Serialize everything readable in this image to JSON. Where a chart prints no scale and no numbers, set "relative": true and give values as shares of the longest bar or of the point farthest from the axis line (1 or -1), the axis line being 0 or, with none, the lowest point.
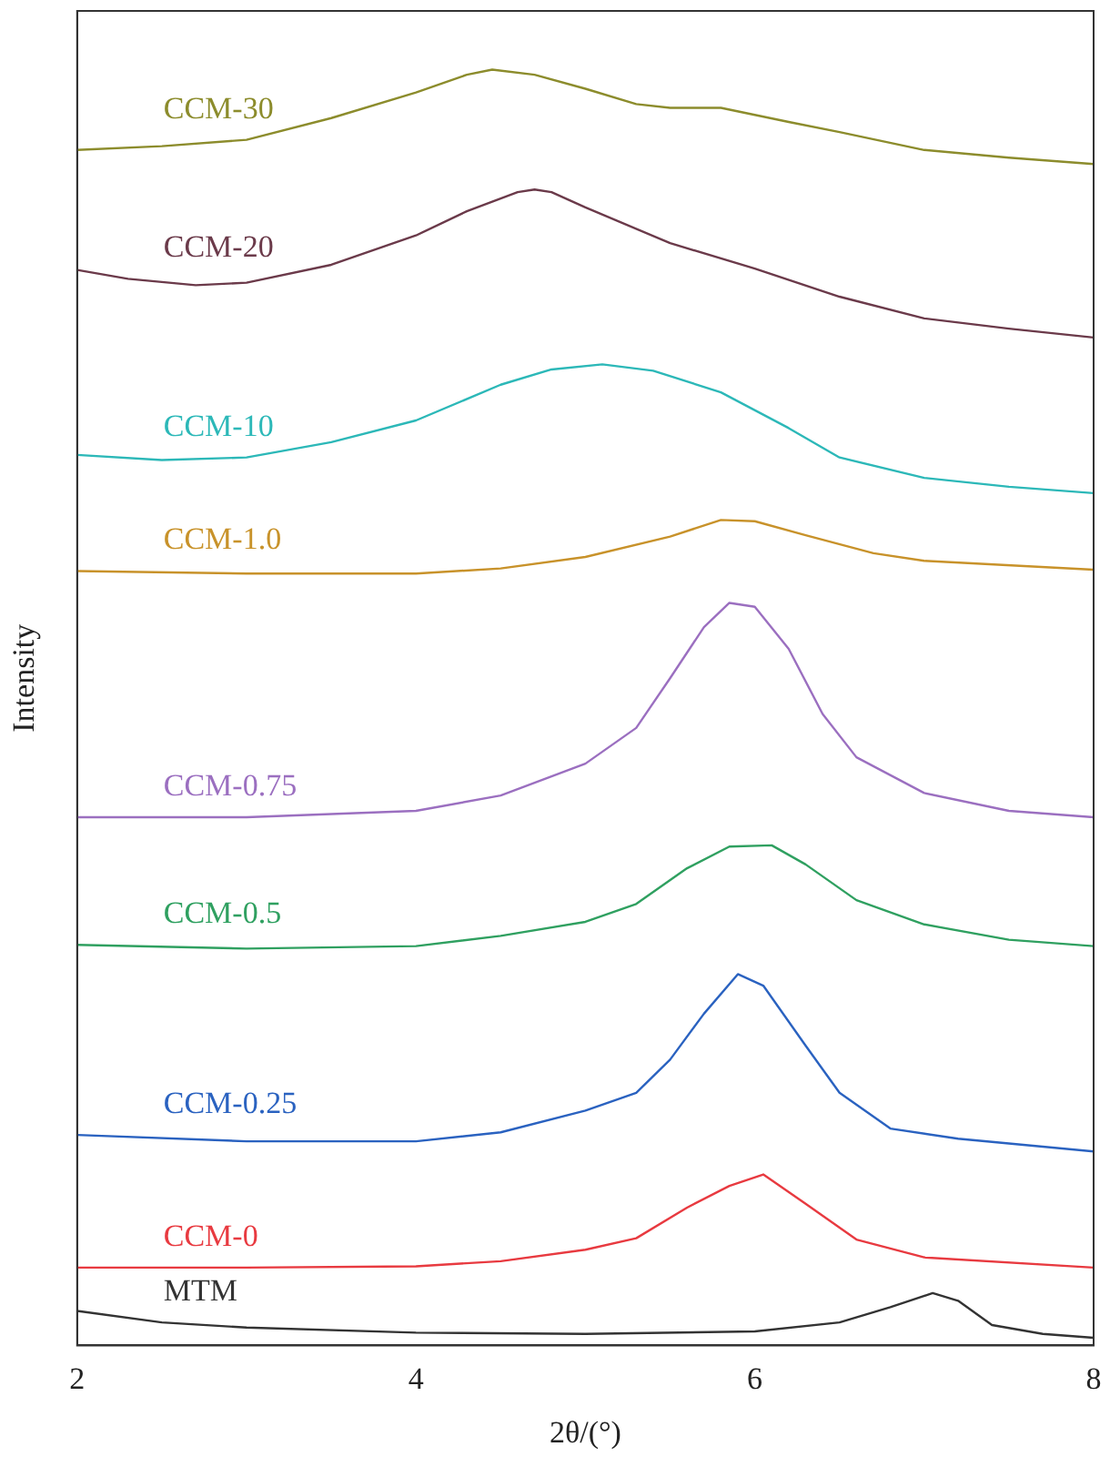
{
  "chart_data": {
    "type": "line",
    "relative": true,
    "xlabel": "2θ/(°)",
    "ylabel": "Intensity",
    "xlim": [
      2,
      8
    ],
    "xticks": [
      2,
      4,
      6,
      8
    ],
    "tick_labels": "x",
    "grid": false,
    "legend": false,
    "marker": "none",
    "line_style": "solid",
    "series": [
      {
        "name": "CCM-30",
        "color": "#8c8c2c",
        "x": [
          2,
          2.5,
          3,
          3.5,
          4,
          4.3,
          4.45,
          4.7,
          5,
          5.3,
          5.5,
          5.8,
          6.2,
          6.5,
          7,
          7.5,
          8
        ],
        "values": [
          0.937,
          0.94,
          0.945,
          0.962,
          0.982,
          0.996,
          1,
          0.996,
          0.985,
          0.973,
          0.97,
          0.97,
          0.959,
          0.951,
          0.937,
          0.931,
          0.926
        ]
      },
      {
        "name": "CCM-20",
        "color": "#6b3a4a",
        "x": [
          2,
          2.3,
          2.7,
          3,
          3.5,
          4,
          4.3,
          4.6,
          4.7,
          4.8,
          5,
          5.5,
          6,
          6.5,
          7,
          7.5,
          8
        ],
        "values": [
          0.843,
          0.836,
          0.831,
          0.833,
          0.847,
          0.87,
          0.889,
          0.904,
          0.906,
          0.904,
          0.892,
          0.864,
          0.844,
          0.822,
          0.805,
          0.797,
          0.79
        ]
      },
      {
        "name": "CCM-10",
        "color": "#2cb8b8",
        "x": [
          2,
          2.5,
          3,
          3.5,
          4,
          4.5,
          4.8,
          5.1,
          5.4,
          5.8,
          6.2,
          6.5,
          7,
          7.5,
          8
        ],
        "values": [
          0.698,
          0.694,
          0.696,
          0.708,
          0.725,
          0.753,
          0.765,
          0.769,
          0.764,
          0.747,
          0.719,
          0.696,
          0.68,
          0.673,
          0.668
        ]
      },
      {
        "name": "CCM-1.0",
        "color": "#c8922a",
        "x": [
          2,
          3,
          4,
          4.5,
          5,
          5.5,
          5.8,
          6,
          6.3,
          6.7,
          7,
          8
        ],
        "values": [
          0.607,
          0.605,
          0.605,
          0.609,
          0.618,
          0.634,
          0.647,
          0.646,
          0.635,
          0.621,
          0.615,
          0.608
        ]
      },
      {
        "name": "CCM-0.75",
        "color": "#9b6fc0",
        "x": [
          2,
          3,
          4,
          4.5,
          5,
          5.3,
          5.5,
          5.7,
          5.85,
          6,
          6.2,
          6.4,
          6.6,
          7,
          7.5,
          8
        ],
        "values": [
          0.414,
          0.414,
          0.419,
          0.431,
          0.456,
          0.484,
          0.523,
          0.563,
          0.582,
          0.579,
          0.546,
          0.495,
          0.461,
          0.433,
          0.419,
          0.414
        ]
      },
      {
        "name": "CCM-0.5",
        "color": "#2fa060",
        "x": [
          2,
          3,
          4,
          4.5,
          5,
          5.3,
          5.6,
          5.85,
          6.1,
          6.3,
          6.6,
          7,
          7.5,
          8
        ],
        "values": [
          0.314,
          0.311,
          0.313,
          0.321,
          0.332,
          0.346,
          0.374,
          0.391,
          0.392,
          0.377,
          0.349,
          0.33,
          0.318,
          0.313
        ]
      },
      {
        "name": "CCM-0.25",
        "color": "#2a62c0",
        "x": [
          2,
          3,
          4,
          4.5,
          5,
          5.3,
          5.5,
          5.7,
          5.9,
          6.05,
          6.3,
          6.5,
          6.8,
          7.2,
          8
        ],
        "values": [
          0.165,
          0.16,
          0.16,
          0.167,
          0.184,
          0.198,
          0.224,
          0.26,
          0.291,
          0.282,
          0.235,
          0.198,
          0.17,
          0.162,
          0.152
        ]
      },
      {
        "name": "CCM-0",
        "color": "#e83a40",
        "x": [
          2,
          3,
          4,
          4.5,
          5,
          5.3,
          5.6,
          5.85,
          6.05,
          6.3,
          6.6,
          7,
          8
        ],
        "values": [
          0.061,
          0.061,
          0.062,
          0.066,
          0.075,
          0.084,
          0.108,
          0.125,
          0.134,
          0.111,
          0.083,
          0.069,
          0.061
        ]
      },
      {
        "name": "MTM",
        "color": "#333333",
        "x": [
          2,
          2.5,
          3,
          4,
          5,
          6,
          6.5,
          6.8,
          7.05,
          7.2,
          7.4,
          7.7,
          8
        ],
        "values": [
          0.027,
          0.018,
          0.014,
          0.01,
          0.009,
          0.011,
          0.018,
          0.03,
          0.041,
          0.035,
          0.016,
          0.009,
          0.006
        ]
      }
    ]
  }
}
